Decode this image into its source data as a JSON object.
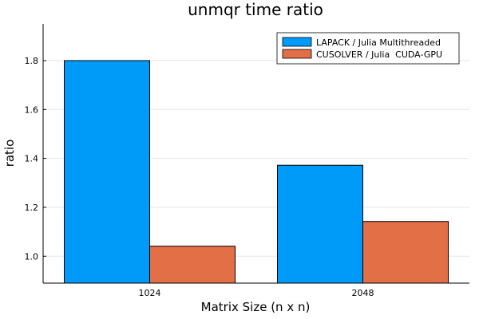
{
  "chart_data": {
    "type": "bar",
    "title": "unmqr time ratio",
    "xlabel": "Matrix Size (n x n)",
    "ylabel": "ratio",
    "categories": [
      "1024",
      "2048"
    ],
    "series": [
      {
        "name": "LAPACK / Julia Multithreaded",
        "color": "#009af9",
        "values": [
          1.8,
          1.372
        ]
      },
      {
        "name": "CUSOLVER / Julia  CUDA-GPU",
        "color": "#e26f46",
        "values": [
          1.041,
          1.142
        ]
      }
    ],
    "ylim": [
      0.89,
      1.95
    ],
    "yticks": [
      1.0,
      1.2,
      1.4,
      1.6,
      1.8
    ],
    "ytick_labels": [
      "1.0",
      "1.2",
      "1.4",
      "1.6",
      "1.8"
    ],
    "grid": true,
    "legend_position": "top-right"
  }
}
